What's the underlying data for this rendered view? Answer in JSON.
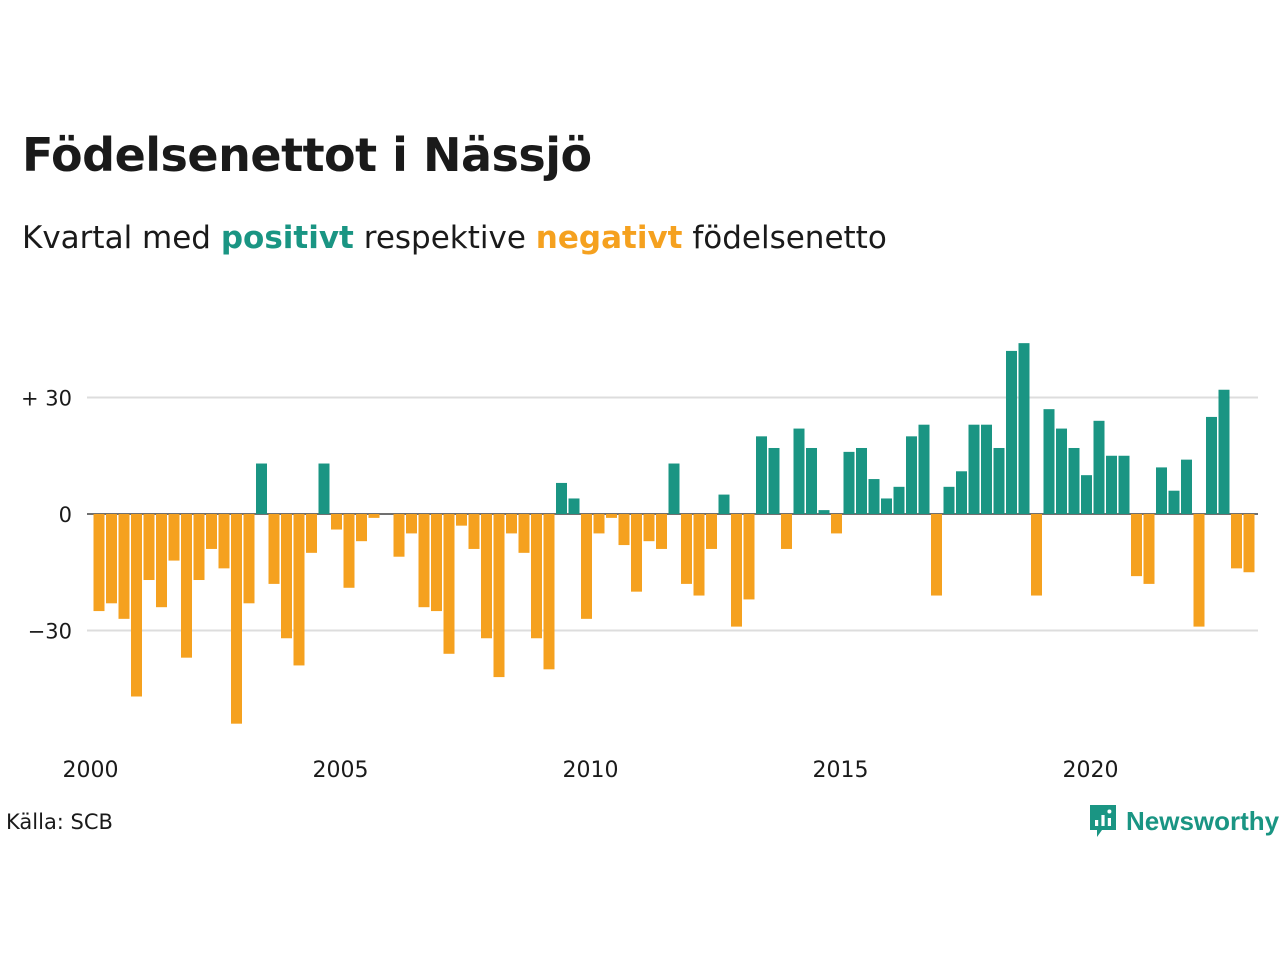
{
  "title": "Födelsenettot i Nässjö",
  "subtitle": {
    "prefix": "Kvartal med",
    "positive": "positivt",
    "middle": "respektive",
    "negative": "negativt",
    "suffix": "födelsenetto"
  },
  "source": "Källa: SCB",
  "brand": "Newsworthy",
  "colors": {
    "positive": "#1a9583",
    "negative": "#f5a11f",
    "grid": "#dddddd",
    "text": "#1a1a1a"
  },
  "chart_data": {
    "type": "bar",
    "x_start": 2000,
    "period": "quarter",
    "y_ticks": [
      {
        "value": 30,
        "label": "+ 30"
      },
      {
        "value": 0,
        "label": "0"
      },
      {
        "value": -30,
        "label": "−30"
      }
    ],
    "x_ticks": [
      {
        "year": 2000,
        "label": "2000"
      },
      {
        "year": 2005,
        "label": "2005"
      },
      {
        "year": 2010,
        "label": "2010"
      },
      {
        "year": 2015,
        "label": "2015"
      },
      {
        "year": 2020,
        "label": "2020"
      }
    ],
    "ylim": [
      -54,
      44
    ],
    "values": [
      -25,
      -23,
      -27,
      -47,
      -17,
      -24,
      -12,
      -37,
      -17,
      -9,
      -14,
      -54,
      -23,
      13,
      -18,
      -32,
      -39,
      -10,
      13,
      -4,
      -19,
      -7,
      -1,
      0,
      -11,
      -5,
      -24,
      -25,
      -36,
      -3,
      -9,
      -32,
      -42,
      -5,
      -10,
      -32,
      -40,
      8,
      4,
      -27,
      -5,
      -1,
      -8,
      -20,
      -7,
      -9,
      13,
      -18,
      -21,
      -9,
      5,
      -29,
      -22,
      20,
      17,
      -9,
      22,
      17,
      1,
      -5,
      16,
      17,
      9,
      4,
      7,
      20,
      23,
      -21,
      7,
      11,
      23,
      23,
      17,
      42,
      44,
      -21,
      27,
      22,
      17,
      10,
      24,
      15,
      15,
      -16,
      -18,
      12,
      6,
      14,
      -29,
      25,
      32,
      -14,
      -15
    ]
  }
}
